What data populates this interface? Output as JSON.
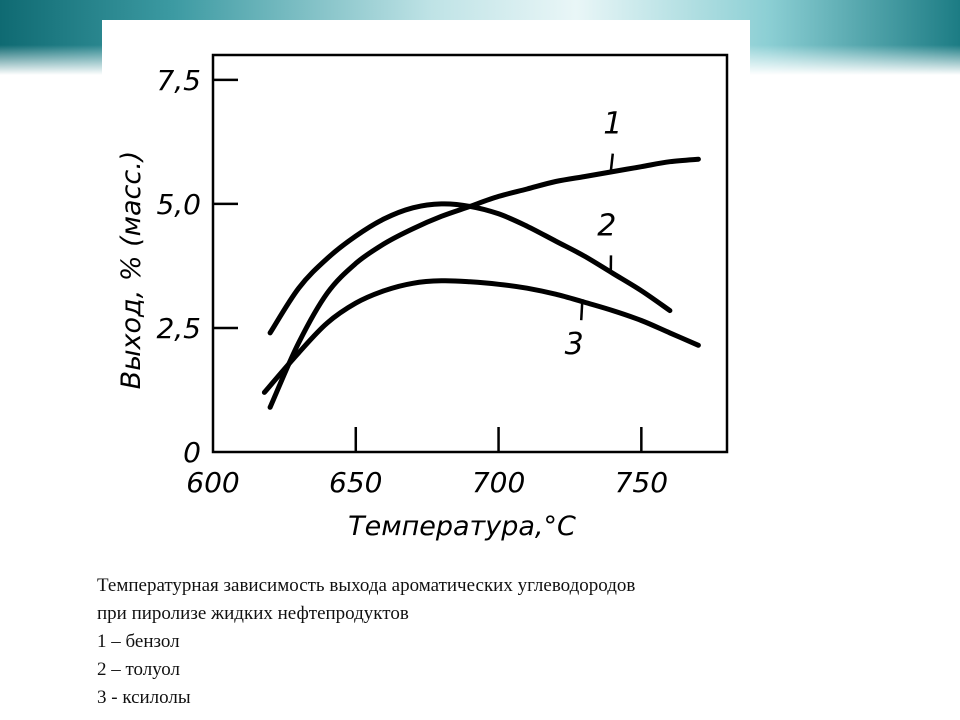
{
  "caption": {
    "line1": "Температурная зависимость выхода ароматических углеводородов",
    "line2": "при пиролизе жидких нефтепродуктов",
    "legend": [
      "1 – бензол",
      "2 – толуол",
      "3 - ксилолы"
    ]
  },
  "chart_data": {
    "type": "line",
    "title": "",
    "xlabel": "Температура,°C",
    "ylabel": "Выход, % (масс.)",
    "xlim": [
      600,
      780
    ],
    "ylim": [
      0,
      8.0
    ],
    "x_ticks": [
      600,
      650,
      700,
      750
    ],
    "x_tick_labels": [
      "600",
      "650",
      "700",
      "750"
    ],
    "y_ticks": [
      0,
      2.5,
      5.0,
      7.5
    ],
    "y_tick_labels": [
      "0",
      "2,5",
      "5,0",
      "7,5"
    ],
    "grid": false,
    "legend": "none",
    "series": [
      {
        "name": "1",
        "x": [
          620,
          630,
          640,
          650,
          660,
          670,
          680,
          690,
          700,
          710,
          720,
          730,
          740,
          750,
          760,
          770
        ],
        "y": [
          0.9,
          2.2,
          3.2,
          3.8,
          4.2,
          4.5,
          4.75,
          4.95,
          5.15,
          5.3,
          5.45,
          5.55,
          5.65,
          5.75,
          5.85,
          5.9
        ]
      },
      {
        "name": "2",
        "x": [
          620,
          630,
          640,
          650,
          660,
          670,
          680,
          690,
          700,
          710,
          720,
          730,
          740,
          750,
          760
        ],
        "y": [
          2.4,
          3.3,
          3.9,
          4.35,
          4.7,
          4.92,
          5.0,
          4.95,
          4.8,
          4.55,
          4.25,
          3.95,
          3.6,
          3.25,
          2.85
        ]
      },
      {
        "name": "3",
        "x": [
          618,
          630,
          640,
          650,
          660,
          670,
          680,
          690,
          700,
          710,
          720,
          730,
          740,
          750,
          760,
          770
        ],
        "y": [
          1.2,
          2.0,
          2.6,
          3.0,
          3.25,
          3.4,
          3.45,
          3.43,
          3.38,
          3.3,
          3.18,
          3.02,
          2.85,
          2.65,
          2.4,
          2.15
        ]
      }
    ]
  }
}
